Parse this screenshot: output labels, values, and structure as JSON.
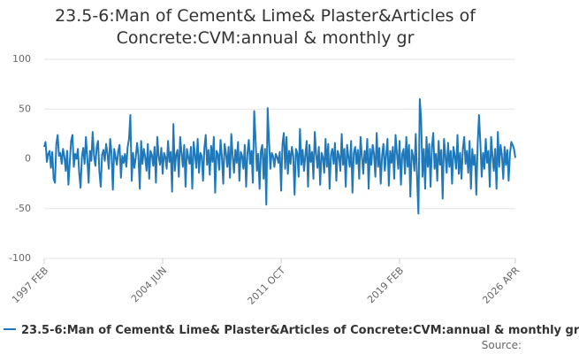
{
  "chart_data": {
    "type": "line",
    "title": "23.5-6:Man of Cement& Lime& Plaster&Articles of Concrete:CVM:annual & monthly gr",
    "source_label": "Source:",
    "categories": [
      "1997 FEB",
      null,
      null,
      null,
      null,
      null,
      null,
      null,
      null,
      null,
      null,
      null,
      null,
      null,
      null,
      null,
      null,
      null,
      null,
      null,
      null,
      null,
      null,
      null,
      null,
      null,
      null,
      null,
      null,
      null,
      null,
      null,
      null,
      null,
      null,
      null,
      null,
      null,
      null,
      null,
      null,
      null,
      null,
      null,
      null,
      null,
      null,
      null,
      null,
      null,
      null,
      null,
      null,
      null,
      null,
      null,
      null,
      null,
      null,
      null,
      null,
      null,
      null,
      null,
      null,
      null,
      null,
      null,
      null,
      null,
      null,
      null,
      null,
      null,
      null,
      null,
      null,
      null,
      null,
      null,
      null,
      null,
      null,
      null,
      null,
      null,
      null,
      null,
      "2004 JUN",
      null,
      null,
      null,
      null,
      null,
      null,
      null,
      null,
      null,
      null,
      null,
      null,
      null,
      null,
      null,
      null,
      null,
      null,
      null,
      null,
      null,
      null,
      null,
      null,
      null,
      null,
      null,
      null,
      null,
      null,
      null,
      null,
      null,
      null,
      null,
      null,
      null,
      null,
      null,
      null,
      null,
      null,
      null,
      null,
      null,
      null,
      null,
      null,
      null,
      null,
      null,
      null,
      null,
      null,
      null,
      null,
      null,
      null,
      null,
      null,
      null,
      null,
      null,
      null,
      null,
      null,
      null,
      null,
      null,
      null,
      null,
      null,
      null,
      null,
      null,
      null,
      null,
      null,
      null,
      null,
      null,
      null,
      null,
      null,
      null,
      null,
      null,
      "2011 OCT",
      null,
      null,
      null,
      null,
      null,
      null,
      null,
      null,
      null,
      null,
      null,
      null,
      null,
      null,
      null,
      null,
      null,
      null,
      null,
      null,
      null,
      null,
      null,
      null,
      null,
      null,
      null,
      null,
      null,
      null,
      null,
      null,
      null,
      null,
      null,
      null,
      null,
      null,
      null,
      null,
      null,
      null,
      null,
      null,
      null,
      null,
      null,
      null,
      null,
      null,
      null,
      null,
      null,
      null,
      null,
      null,
      null,
      null,
      null,
      null,
      null,
      null,
      null,
      null,
      null,
      null,
      null,
      null,
      null,
      null,
      null,
      null,
      null,
      null,
      null,
      null,
      null,
      null,
      null,
      null,
      null,
      null,
      null,
      null,
      null,
      null,
      null,
      "2019 FEB",
      null,
      null,
      null,
      null,
      null,
      null,
      null,
      null,
      null,
      null,
      null,
      null,
      null,
      null,
      null,
      null,
      null,
      null,
      null,
      null,
      null,
      null,
      null,
      null,
      null,
      null,
      null,
      null,
      null,
      null,
      null,
      null,
      null,
      null,
      null,
      null,
      null,
      null,
      null,
      null,
      null,
      null,
      null,
      null,
      null,
      null,
      null,
      null,
      null,
      null,
      null,
      null,
      null,
      null,
      null,
      null,
      null,
      null,
      null,
      null,
      null,
      null,
      null,
      null,
      null,
      null,
      null,
      null,
      null,
      null,
      null,
      null,
      null,
      null,
      null,
      null,
      null,
      null,
      null,
      null,
      null,
      null,
      null,
      null,
      null,
      "2026 APR"
    ],
    "series": [
      {
        "name": "23.5-6:Man of Cement& Lime& Plaster&Articles of Concrete:CVM:annual & monthly gr",
        "color": "#1f78b9",
        "values": [
          12,
          17,
          -3,
          5,
          8,
          -9,
          7,
          -20,
          -24,
          15,
          24,
          3,
          6,
          -5,
          10,
          2,
          -12,
          8,
          -26,
          -3,
          18,
          24,
          -8,
          5,
          0,
          10,
          -14,
          -29,
          2,
          11,
          -5,
          22,
          1,
          -24,
          8,
          -2,
          27,
          3,
          -7,
          12,
          18,
          -13,
          -28,
          4,
          9,
          -2,
          15,
          5,
          -10,
          20,
          6,
          -31,
          10,
          2,
          -6,
          8,
          14,
          -19,
          3,
          -4,
          5,
          -8,
          12,
          20,
          44,
          -22,
          6,
          -9,
          1,
          16,
          3,
          -30,
          18,
          -5,
          10,
          2,
          -12,
          15,
          -20,
          8,
          4,
          -7,
          12,
          -24,
          22,
          3,
          -6,
          11,
          -15,
          6,
          2,
          -10,
          18,
          -3,
          7,
          -33,
          35,
          -12,
          4,
          9,
          -18,
          22,
          6,
          -8,
          14,
          -28,
          10,
          2,
          -5,
          12,
          -30,
          17,
          4,
          -9,
          20,
          -14,
          6,
          3,
          -22,
          11,
          24,
          -6,
          9,
          -16,
          13,
          -3,
          22,
          -34,
          8,
          5,
          -11,
          19,
          2,
          -25,
          15,
          6,
          -8,
          12,
          -19,
          25,
          3,
          -14,
          9,
          -4,
          17,
          -22,
          7,
          3,
          -10,
          14,
          -28,
          6,
          19,
          -5,
          8,
          -24,
          48,
          20,
          -12,
          5,
          -30,
          8,
          14,
          -20,
          10,
          -46,
          51,
          18,
          -10,
          6,
          3,
          -8,
          5,
          2,
          -4,
          7,
          -32,
          15,
          26,
          -10,
          22,
          -15,
          8,
          -5,
          12,
          3,
          -36,
          10,
          6,
          -18,
          30,
          -6,
          9,
          -12,
          4,
          18,
          -28,
          14,
          -3,
          7,
          -20,
          27,
          5,
          -9,
          12,
          -26,
          6,
          2,
          -14,
          20,
          -8,
          15,
          -30,
          4,
          10,
          -5,
          16,
          -22,
          8,
          3,
          -12,
          25,
          -6,
          10,
          -28,
          14,
          2,
          -8,
          18,
          -34,
          6,
          12,
          -5,
          9,
          -20,
          22,
          3,
          -15,
          8,
          -4,
          20,
          -30,
          10,
          -6,
          14,
          5,
          -18,
          26,
          -8,
          11,
          -25,
          3,
          15,
          -12,
          4,
          20,
          -27,
          8,
          -4,
          12,
          -20,
          24,
          6,
          -10,
          18,
          -26,
          5,
          10,
          -15,
          22,
          -8,
          14,
          -38,
          9,
          3,
          -12,
          25,
          -20,
          -55,
          60,
          40,
          -18,
          10,
          -30,
          22,
          -8,
          15,
          -28,
          12,
          26,
          -10,
          5,
          -22,
          18,
          -6,
          9,
          -40,
          20,
          4,
          -14,
          16,
          -8,
          8,
          -25,
          12,
          3,
          -10,
          24,
          -15,
          6,
          -20,
          10,
          22,
          -5,
          8,
          -14,
          18,
          -30,
          10,
          -6,
          4,
          -36,
          15,
          44,
          16,
          -18,
          6,
          -10,
          20,
          -4,
          8,
          -28,
          22,
          3,
          -12,
          10,
          -30,
          27,
          -8,
          14,
          4,
          -20,
          12,
          -6,
          9,
          -22,
          5,
          17,
          14,
          10,
          1
        ]
      }
    ],
    "ylim": [
      -100,
      100
    ],
    "yticks": [
      -100,
      -50,
      0,
      50,
      100
    ],
    "grid": true
  }
}
